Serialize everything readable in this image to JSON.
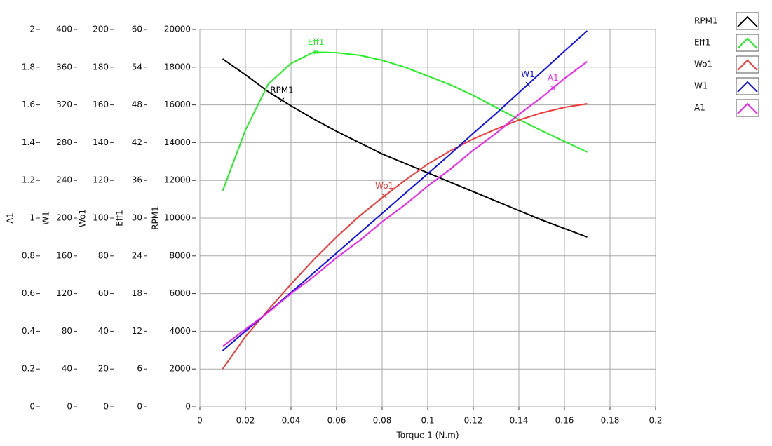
{
  "chart_data": {
    "type": "line",
    "xlabel": "Torque 1 (N.m)",
    "xlim": [
      0,
      0.2
    ],
    "xticks": [
      0,
      0.02,
      0.04,
      0.06,
      0.08,
      0.1,
      0.12,
      0.14,
      0.16,
      0.18,
      0.2
    ],
    "ylabel": "RPM1",
    "ylim": [
      0,
      20000
    ],
    "yticks": [
      0,
      2000,
      4000,
      6000,
      8000,
      10000,
      12000,
      14000,
      16000,
      18000,
      20000
    ],
    "y2label": "Eff1",
    "y2lim": [
      0,
      60
    ],
    "y2ticks": [
      0,
      6,
      12,
      18,
      24,
      30,
      36,
      42,
      48,
      54,
      60
    ],
    "y3label": "Wo1",
    "y3lim": [
      0,
      200
    ],
    "y3ticks": [
      0,
      20,
      40,
      60,
      80,
      100,
      120,
      140,
      160,
      180,
      200
    ],
    "y4label": "W1",
    "y4lim": [
      0,
      400
    ],
    "y4ticks": [
      0,
      40,
      80,
      120,
      160,
      200,
      240,
      280,
      320,
      360,
      400
    ],
    "y5label": "A1",
    "y5lim": [
      0,
      2
    ],
    "y5ticks": [
      0,
      0.2,
      0.4,
      0.6,
      0.8,
      1,
      1.2,
      1.4,
      1.6,
      1.8,
      2
    ],
    "grid": true,
    "x": [
      0.01,
      0.02,
      0.03,
      0.04,
      0.05,
      0.06,
      0.07,
      0.08,
      0.09,
      0.1,
      0.11,
      0.12,
      0.13,
      0.14,
      0.15,
      0.16,
      0.17
    ],
    "series": [
      {
        "name": "RPM1",
        "color": "#000000",
        "axis": "y",
        "marker_x": 0.036,
        "values": [
          18440,
          17600,
          16700,
          15950,
          15250,
          14600,
          14000,
          13400,
          12900,
          12400,
          11900,
          11400,
          10900,
          10400,
          9900,
          9450,
          9000
        ]
      },
      {
        "name": "Eff1",
        "color": "#22ee22",
        "axis": "y2",
        "marker_x": 0.051,
        "values": [
          34.3,
          44,
          51.3,
          54.6,
          56.4,
          56.3,
          55.9,
          55.1,
          54,
          52.6,
          51.2,
          49.5,
          47.6,
          45.7,
          43.9,
          42.2,
          40.5
        ]
      },
      {
        "name": "Wo1",
        "color": "#ee3a3a",
        "axis": "y3",
        "marker_x": 0.081,
        "values": [
          20,
          37.2,
          51.3,
          65,
          78,
          90,
          101,
          110.8,
          120,
          128.6,
          135.7,
          142,
          147.2,
          152,
          155.8,
          158.7,
          160.6
        ]
      },
      {
        "name": "W1",
        "color": "#1010ee",
        "axis": "y4",
        "marker_x": 0.144,
        "values": [
          59.5,
          80,
          100.5,
          121,
          142,
          163,
          184,
          205,
          226,
          247,
          268,
          290,
          311,
          333,
          355,
          377,
          398.5
        ]
      },
      {
        "name": "A1",
        "color": "#ee22ee",
        "axis": "y5",
        "marker_x": 0.155,
        "values": [
          0.32,
          0.41,
          0.5,
          0.6,
          0.69,
          0.79,
          0.88,
          0.98,
          1.07,
          1.17,
          1.26,
          1.36,
          1.45,
          1.55,
          1.64,
          1.74,
          1.83
        ]
      }
    ]
  }
}
